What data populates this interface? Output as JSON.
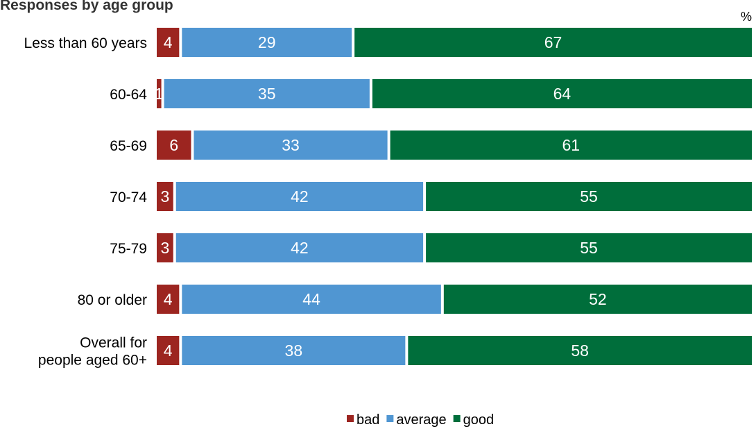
{
  "chart_data": {
    "type": "bar",
    "orientation": "horizontal",
    "stacked": true,
    "title": "Responses by age group",
    "unit_label": "%",
    "categories": [
      [
        "Less than 60 years"
      ],
      [
        "60-64"
      ],
      [
        "65-69"
      ],
      [
        "70-74"
      ],
      [
        "75-79"
      ],
      [
        "80 or older"
      ],
      [
        "Overall for",
        "people aged 60+"
      ]
    ],
    "series": [
      {
        "name": "bad",
        "color": "#9c2520",
        "values": [
          4,
          1,
          6,
          3,
          3,
          4,
          4
        ]
      },
      {
        "name": "average",
        "color": "#5096d2",
        "values": [
          29,
          35,
          33,
          42,
          42,
          44,
          38
        ]
      },
      {
        "name": "good",
        "color": "#006e3b",
        "values": [
          67,
          64,
          61,
          55,
          55,
          52,
          58
        ]
      }
    ],
    "xlim": [
      0,
      100
    ],
    "grid": false,
    "legend": "bottom"
  }
}
